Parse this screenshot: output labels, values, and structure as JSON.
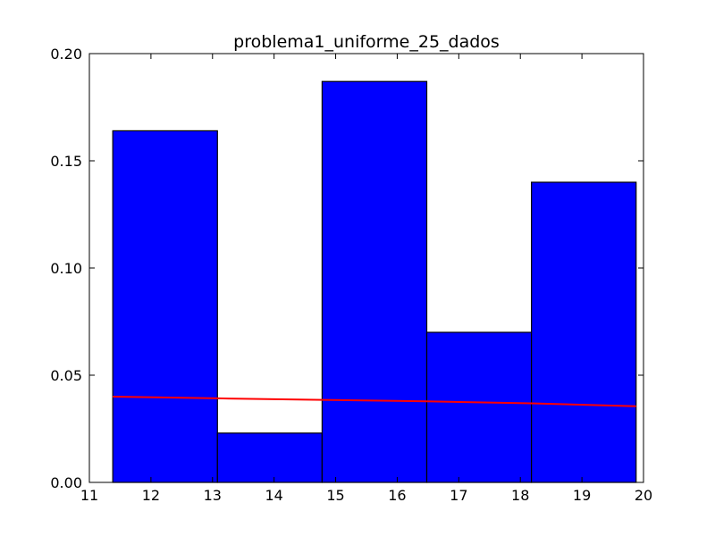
{
  "chart_data": {
    "type": "bar",
    "title": "problema1_uniforme_25_dados",
    "xlabel": "",
    "ylabel": "",
    "xlim": [
      11,
      20
    ],
    "ylim": [
      0,
      0.2
    ],
    "grid": false,
    "x_ticks": [
      "11",
      "12",
      "13",
      "14",
      "15",
      "16",
      "17",
      "18",
      "19",
      "20"
    ],
    "x_tick_values": [
      11,
      12,
      13,
      14,
      15,
      16,
      17,
      18,
      19,
      20
    ],
    "y_ticks": [
      "0.00",
      "0.05",
      "0.10",
      "0.15",
      "0.20"
    ],
    "y_tick_values": [
      0,
      0.05,
      0.1,
      0.15,
      0.2
    ],
    "bars": [
      {
        "x0": 11.38,
        "x1": 13.08,
        "value": 0.164
      },
      {
        "x0": 13.08,
        "x1": 14.78,
        "value": 0.023
      },
      {
        "x0": 14.78,
        "x1": 16.48,
        "value": 0.187
      },
      {
        "x0": 16.48,
        "x1": 18.18,
        "value": 0.07
      },
      {
        "x0": 18.18,
        "x1": 19.88,
        "value": 0.14
      }
    ],
    "line": {
      "x": [
        11.38,
        13.08,
        14.78,
        16.48,
        18.18,
        19.88
      ],
      "y": [
        0.04,
        0.0392,
        0.0385,
        0.0378,
        0.0369,
        0.0355
      ]
    },
    "colors": {
      "bar_fill": "#0000ff",
      "bar_edge": "#000000",
      "line": "#ff0000",
      "axes": "#000000",
      "background": "#ffffff"
    }
  }
}
